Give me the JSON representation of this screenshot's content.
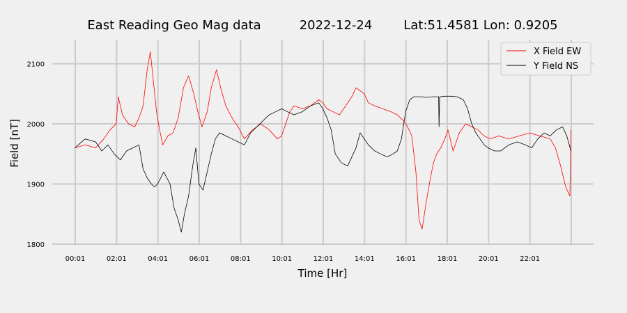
{
  "chart_data": {
    "type": "line",
    "title": {
      "left": "East Reading Geo Mag data",
      "middle": "2022-12-24",
      "right": "Lat:51.4581  Lon: 0.9205"
    },
    "xlabel": "Time  [Hr]",
    "ylabel": "Field  [nT]",
    "xlim": [
      0,
      25.0
    ],
    "ylim": [
      1800,
      2140
    ],
    "x_tick_values": [
      0.0167,
      2.0167,
      4.0167,
      6.0167,
      8.0167,
      10.0167,
      12.0167,
      14.0167,
      16.0167,
      18.0167,
      20.0167,
      22.0167,
      24.0167
    ],
    "x_tick_labels": [
      "00:01",
      "02:01",
      "04:01",
      "06:01",
      "08:01",
      "10:01",
      "12:01",
      "14:01",
      "16:01",
      "18:01",
      "20:01",
      "22:01",
      ""
    ],
    "y_ticks": [
      1800,
      1900,
      2000,
      2100
    ],
    "grid": true,
    "legend_position": "top-right",
    "series": [
      {
        "name": "X Field EW",
        "color": "#ff0000",
        "x": [
          0.0,
          0.5,
          1.0,
          1.4,
          1.7,
          2.0,
          2.1,
          2.3,
          2.6,
          2.9,
          3.1,
          3.3,
          3.5,
          3.65,
          3.8,
          3.95,
          4.1,
          4.25,
          4.5,
          4.75,
          5.0,
          5.25,
          5.5,
          5.75,
          5.95,
          6.15,
          6.4,
          6.6,
          6.85,
          7.05,
          7.3,
          7.6,
          7.9,
          8.2,
          8.6,
          9.0,
          9.4,
          9.8,
          10.0,
          10.2,
          10.4,
          10.6,
          11.0,
          11.4,
          11.8,
          12.0,
          12.2,
          12.5,
          12.8,
          13.1,
          13.4,
          13.6,
          13.8,
          14.0,
          14.2,
          14.5,
          14.9,
          15.3,
          15.6,
          15.9,
          16.1,
          16.3,
          16.5,
          16.65,
          16.8,
          17.0,
          17.2,
          17.35,
          17.5,
          17.7,
          17.9,
          18.05,
          18.3,
          18.6,
          18.9,
          19.2,
          19.5,
          19.8,
          20.1,
          20.5,
          21.0,
          21.5,
          22.0,
          22.5,
          23.0,
          23.25,
          23.5,
          23.75,
          23.95,
          24.0
        ],
        "y": [
          1960,
          1965,
          1960,
          1975,
          1990,
          2000,
          2045,
          2015,
          2000,
          1995,
          2010,
          2030,
          2090,
          2120,
          2070,
          2020,
          1990,
          1965,
          1980,
          1985,
          2010,
          2060,
          2080,
          2050,
          2020,
          1995,
          2020,
          2060,
          2090,
          2060,
          2030,
          2010,
          1995,
          1975,
          1990,
          2000,
          1990,
          1975,
          1980,
          2000,
          2020,
          2030,
          2025,
          2030,
          2040,
          2035,
          2025,
          2020,
          2015,
          2030,
          2045,
          2060,
          2055,
          2050,
          2035,
          2030,
          2025,
          2020,
          2015,
          2005,
          1995,
          1980,
          1920,
          1840,
          1825,
          1870,
          1910,
          1935,
          1950,
          1960,
          1975,
          1990,
          1955,
          1985,
          2000,
          1995,
          1990,
          1980,
          1975,
          1980,
          1975,
          1980,
          1985,
          1980,
          1975,
          1960,
          1930,
          1895,
          1880,
          1990
        ]
      },
      {
        "name": "Y Field NS",
        "color": "#000000",
        "x": [
          0.0,
          0.5,
          1.0,
          1.3,
          1.6,
          1.9,
          2.2,
          2.5,
          2.8,
          3.1,
          3.3,
          3.5,
          3.7,
          3.85,
          4.0,
          4.3,
          4.6,
          4.8,
          5.0,
          5.15,
          5.3,
          5.5,
          5.7,
          5.85,
          6.0,
          6.2,
          6.4,
          6.6,
          6.8,
          7.0,
          7.3,
          7.6,
          7.9,
          8.2,
          8.5,
          8.8,
          9.1,
          9.4,
          9.7,
          10.0,
          10.3,
          10.6,
          11.0,
          11.4,
          11.8,
          12.0,
          12.2,
          12.4,
          12.6,
          12.9,
          13.2,
          13.4,
          13.6,
          13.8,
          14.0,
          14.2,
          14.5,
          14.8,
          15.1,
          15.4,
          15.6,
          15.8,
          16.0,
          16.2,
          16.4,
          16.6,
          16.8,
          17.0,
          17.3,
          17.6,
          17.62,
          17.65,
          17.9,
          18.2,
          18.5,
          18.8,
          19.0,
          19.2,
          19.4,
          19.6,
          19.8,
          20.0,
          20.3,
          20.6,
          21.0,
          21.4,
          21.8,
          22.1,
          22.4,
          22.7,
          23.0,
          23.3,
          23.6,
          23.8,
          24.0
        ],
        "y": [
          1960,
          1975,
          1970,
          1955,
          1965,
          1950,
          1940,
          1955,
          1960,
          1965,
          1925,
          1910,
          1900,
          1895,
          1900,
          1920,
          1900,
          1860,
          1840,
          1820,
          1850,
          1880,
          1930,
          1960,
          1900,
          1890,
          1920,
          1950,
          1975,
          1985,
          1980,
          1975,
          1970,
          1965,
          1985,
          1995,
          2005,
          2015,
          2020,
          2025,
          2020,
          2015,
          2020,
          2030,
          2035,
          2025,
          2010,
          1990,
          1950,
          1935,
          1930,
          1945,
          1960,
          1985,
          1975,
          1965,
          1955,
          1950,
          1945,
          1950,
          1955,
          1975,
          2020,
          2040,
          2045,
          2045,
          2045,
          2044,
          2045,
          2045,
          1995,
          2045,
          2046,
          2046,
          2045,
          2040,
          2025,
          2000,
          1985,
          1975,
          1965,
          1960,
          1955,
          1955,
          1965,
          1970,
          1965,
          1960,
          1975,
          1985,
          1980,
          1990,
          1995,
          1980,
          1955
        ]
      }
    ]
  }
}
